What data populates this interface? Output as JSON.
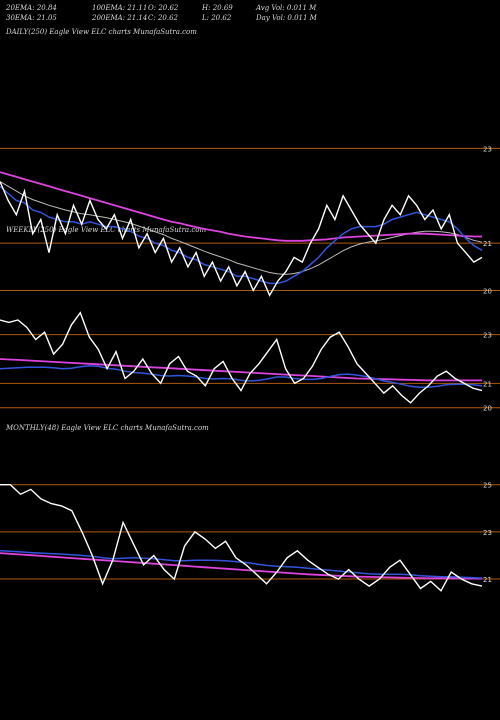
{
  "header": {
    "row1": [
      {
        "label": "20EMA: 20.84"
      },
      {
        "label": "100EMA: 21.11"
      },
      {
        "label": "O: 20.62"
      },
      {
        "label": "H: 20.69"
      },
      {
        "label": "Avg Vol: 0.011 M"
      }
    ],
    "row2": [
      {
        "label": "30EMA: 21.05"
      },
      {
        "label": "200EMA: 21.14"
      },
      {
        "label": "C: 20.62"
      },
      {
        "label": "L: 20.62"
      },
      {
        "label": "Day Vol: 0.011 M"
      }
    ]
  },
  "colors": {
    "price": "#ffffff",
    "ema_fast": "#3355dd",
    "ema_slow": "#dd44dd",
    "grid": "#b05a10",
    "ema_other": "#bbbbbb"
  },
  "chart_data": [
    {
      "type": "line",
      "title": "DAILY(250) Eagle   View  ELC charts MunafaSutra.com",
      "yticks": [
        20,
        21,
        23
      ],
      "ylim": [
        19.8,
        23.6
      ],
      "series": [
        {
          "role": "price",
          "values": [
            22.3,
            21.9,
            21.6,
            22.1,
            21.2,
            21.5,
            20.8,
            21.6,
            21.2,
            21.8,
            21.4,
            21.9,
            21.5,
            21.3,
            21.6,
            21.1,
            21.5,
            20.9,
            21.2,
            20.8,
            21.1,
            20.6,
            20.9,
            20.5,
            20.8,
            20.3,
            20.6,
            20.2,
            20.5,
            20.1,
            20.4,
            20.0,
            20.3,
            19.9,
            20.2,
            20.4,
            20.7,
            20.6,
            21.0,
            21.3,
            21.8,
            21.5,
            22.0,
            21.7,
            21.4,
            21.2,
            21.0,
            21.5,
            21.8,
            21.6,
            22.0,
            21.8,
            21.5,
            21.7,
            21.3,
            21.6,
            21.0,
            20.8,
            20.6,
            20.7
          ]
        },
        {
          "role": "ema_fast",
          "values": [
            22.2,
            22.05,
            21.9,
            21.85,
            21.7,
            21.65,
            21.55,
            21.5,
            21.45,
            21.45,
            21.4,
            21.45,
            21.4,
            21.35,
            21.35,
            21.3,
            21.25,
            21.15,
            21.1,
            21.0,
            20.95,
            20.85,
            20.8,
            20.7,
            20.65,
            20.55,
            20.5,
            20.45,
            20.4,
            20.3,
            20.3,
            20.25,
            20.2,
            20.15,
            20.15,
            20.2,
            20.3,
            20.4,
            20.55,
            20.7,
            20.9,
            21.05,
            21.2,
            21.3,
            21.35,
            21.35,
            21.35,
            21.4,
            21.5,
            21.55,
            21.6,
            21.65,
            21.6,
            21.55,
            21.5,
            21.45,
            21.3,
            21.1,
            20.95,
            20.85
          ]
        },
        {
          "role": "ema_slow",
          "values": [
            22.5,
            22.45,
            22.4,
            22.35,
            22.3,
            22.25,
            22.2,
            22.15,
            22.1,
            22.05,
            22.0,
            21.95,
            21.9,
            21.85,
            21.8,
            21.75,
            21.7,
            21.65,
            21.6,
            21.55,
            21.5,
            21.45,
            21.42,
            21.38,
            21.34,
            21.3,
            21.27,
            21.24,
            21.2,
            21.17,
            21.14,
            21.12,
            21.1,
            21.08,
            21.06,
            21.05,
            21.05,
            21.05,
            21.06,
            21.07,
            21.08,
            21.1,
            21.12,
            21.13,
            21.14,
            21.15,
            21.16,
            21.17,
            21.18,
            21.19,
            21.2,
            21.2,
            21.2,
            21.19,
            21.18,
            21.17,
            21.16,
            21.15,
            21.14,
            21.14
          ]
        },
        {
          "role": "ema_other",
          "values": [
            22.3,
            22.2,
            22.1,
            22.0,
            21.92,
            21.86,
            21.8,
            21.75,
            21.7,
            21.66,
            21.62,
            21.6,
            21.57,
            21.54,
            21.5,
            21.46,
            21.42,
            21.36,
            21.3,
            21.24,
            21.18,
            21.1,
            21.04,
            20.97,
            20.9,
            20.83,
            20.77,
            20.71,
            20.65,
            20.58,
            20.53,
            20.48,
            20.43,
            20.38,
            20.35,
            20.34,
            20.36,
            20.4,
            20.46,
            20.54,
            20.64,
            20.74,
            20.84,
            20.92,
            20.98,
            21.02,
            21.05,
            21.08,
            21.12,
            21.16,
            21.2,
            21.23,
            21.25,
            21.25,
            21.24,
            21.22,
            21.18,
            21.12,
            21.06,
            21.02
          ]
        }
      ]
    },
    {
      "type": "line",
      "title": "WEEKLY(250) Eagle   View  ELC charts MunafaSutra.com",
      "yticks": [
        20,
        21,
        23
      ],
      "ylim": [
        19.7,
        23.6
      ],
      "series": [
        {
          "role": "price",
          "values": [
            23.6,
            23.5,
            23.6,
            23.3,
            22.8,
            23.1,
            22.2,
            22.6,
            23.4,
            23.9,
            22.9,
            22.4,
            21.6,
            22.3,
            21.2,
            21.5,
            22.0,
            21.4,
            21.0,
            21.8,
            22.1,
            21.5,
            21.3,
            20.9,
            21.6,
            21.9,
            21.2,
            20.7,
            21.4,
            21.8,
            22.3,
            22.8,
            21.6,
            21.0,
            21.2,
            21.7,
            22.4,
            22.9,
            23.1,
            22.5,
            21.8,
            21.4,
            21.0,
            20.6,
            20.9,
            20.5,
            20.2,
            20.6,
            20.9,
            21.3,
            21.5,
            21.2,
            21.0,
            20.8,
            20.7
          ]
        },
        {
          "role": "ema_fast",
          "values": [
            21.6,
            21.62,
            21.64,
            21.66,
            21.66,
            21.66,
            21.64,
            21.6,
            21.62,
            21.68,
            21.72,
            21.7,
            21.62,
            21.58,
            21.5,
            21.44,
            21.42,
            21.38,
            21.32,
            21.3,
            21.32,
            21.3,
            21.26,
            21.2,
            21.18,
            21.2,
            21.18,
            21.12,
            21.1,
            21.12,
            21.18,
            21.26,
            21.26,
            21.2,
            21.16,
            21.16,
            21.2,
            21.28,
            21.36,
            21.38,
            21.34,
            21.28,
            21.2,
            21.1,
            21.04,
            20.96,
            20.88,
            20.84,
            20.84,
            20.88,
            20.94,
            20.96,
            20.96,
            20.94,
            20.9
          ]
        },
        {
          "role": "ema_slow",
          "values": [
            22.0,
            21.98,
            21.96,
            21.94,
            21.92,
            21.9,
            21.88,
            21.86,
            21.84,
            21.82,
            21.8,
            21.78,
            21.76,
            21.74,
            21.72,
            21.7,
            21.68,
            21.66,
            21.64,
            21.62,
            21.6,
            21.58,
            21.56,
            21.54,
            21.52,
            21.5,
            21.48,
            21.46,
            21.44,
            21.42,
            21.4,
            21.38,
            21.36,
            21.34,
            21.32,
            21.3,
            21.28,
            21.26,
            21.24,
            21.22,
            21.2,
            21.19,
            21.18,
            21.17,
            21.16,
            21.15,
            21.14,
            21.13,
            21.12,
            21.12,
            21.12,
            21.12,
            21.12,
            21.12,
            21.12
          ]
        }
      ]
    },
    {
      "type": "line",
      "title": "MONTHLY(48) Eagle   View  ELC charts MunafaSutra.com",
      "yticks": [
        21,
        23,
        25
      ],
      "ylim": [
        19.9,
        25.2
      ],
      "series": [
        {
          "role": "price",
          "values": [
            25.0,
            25.0,
            24.6,
            24.8,
            24.4,
            24.2,
            24.1,
            23.9,
            23.0,
            22.0,
            20.8,
            21.8,
            23.4,
            22.5,
            21.6,
            22.0,
            21.4,
            21.0,
            22.4,
            23.0,
            22.7,
            22.3,
            22.6,
            21.9,
            21.6,
            21.2,
            20.8,
            21.3,
            21.9,
            22.2,
            21.8,
            21.5,
            21.2,
            21.0,
            21.4,
            21.0,
            20.7,
            21.0,
            21.5,
            21.8,
            21.2,
            20.6,
            20.9,
            20.5,
            21.3,
            21.0,
            20.8,
            20.7
          ]
        },
        {
          "role": "ema_fast",
          "values": [
            22.2,
            22.18,
            22.15,
            22.12,
            22.1,
            22.08,
            22.06,
            22.03,
            22.0,
            21.96,
            21.9,
            21.86,
            21.88,
            21.9,
            21.88,
            21.86,
            21.82,
            21.78,
            21.78,
            21.8,
            21.8,
            21.79,
            21.78,
            21.74,
            21.7,
            21.64,
            21.58,
            21.54,
            21.52,
            21.5,
            21.46,
            21.42,
            21.38,
            21.34,
            21.3,
            21.26,
            21.22,
            21.2,
            21.2,
            21.2,
            21.18,
            21.14,
            21.12,
            21.1,
            21.1,
            21.08,
            21.06,
            21.04
          ]
        },
        {
          "role": "ema_slow",
          "values": [
            22.1,
            22.07,
            22.04,
            22.01,
            21.98,
            21.95,
            21.92,
            21.89,
            21.86,
            21.83,
            21.8,
            21.77,
            21.74,
            21.71,
            21.68,
            21.65,
            21.62,
            21.59,
            21.56,
            21.53,
            21.5,
            21.47,
            21.44,
            21.41,
            21.38,
            21.35,
            21.32,
            21.29,
            21.26,
            21.23,
            21.2,
            21.18,
            21.16,
            21.14,
            21.12,
            21.1,
            21.09,
            21.08,
            21.07,
            21.06,
            21.05,
            21.04,
            21.03,
            21.03,
            21.03,
            21.02,
            21.02,
            21.02
          ]
        }
      ]
    }
  ]
}
